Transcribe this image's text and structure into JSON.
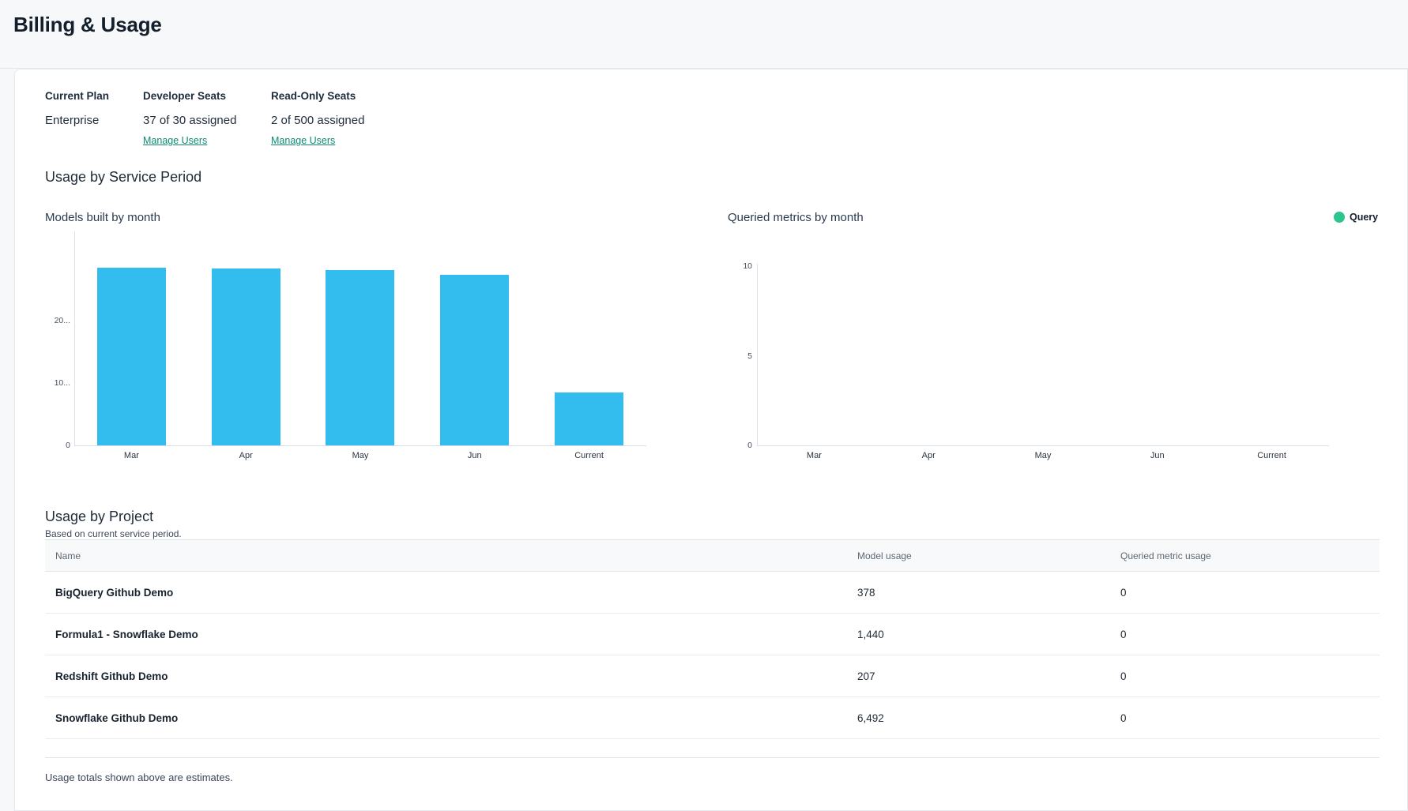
{
  "page": {
    "title": "Billing & Usage"
  },
  "colors": {
    "link_teal": "#0e8a73",
    "bar_blue": "#33bdef",
    "legend_green": "#2ec48e"
  },
  "plan": {
    "columns": [
      {
        "label": "Current Plan",
        "value": "Enterprise"
      },
      {
        "label": "Developer Seats",
        "value": "37 of 30 assigned",
        "link": "Manage Users"
      },
      {
        "label": "Read-Only Seats",
        "value": "2 of 500 assigned",
        "link": "Manage Users"
      }
    ]
  },
  "usage_section": {
    "heading": "Usage by Service Period"
  },
  "chart_data": [
    {
      "type": "bar",
      "title": "Models built by month",
      "categories": [
        "Mar",
        "Apr",
        "May",
        "Jun",
        "Current"
      ],
      "values": [
        28500,
        28400,
        28200,
        27400,
        8500
      ],
      "values_note": "estimated from bar heights; axis labels truncated",
      "xlabel": "",
      "ylabel": "",
      "ylim": [
        0,
        34000
      ],
      "yticks": [
        [
          20000,
          "20..."
        ],
        [
          10000,
          "10..."
        ],
        [
          0,
          "0"
        ]
      ],
      "grid": false,
      "bar_color": "#33bdef",
      "legend_position": "none"
    },
    {
      "type": "line",
      "title": "Queried metrics by month",
      "categories": [
        "Mar",
        "Apr",
        "May",
        "Jun",
        "Current"
      ],
      "series": [
        {
          "name": "Query",
          "values": []
        }
      ],
      "xlabel": "",
      "ylabel": "",
      "ylim": [
        0,
        10
      ],
      "yticks": [
        [
          10,
          "10"
        ],
        [
          5,
          "5"
        ],
        [
          0,
          "0"
        ]
      ],
      "grid": false,
      "legend_position": "top-right",
      "legend": {
        "label": "Query",
        "color": "#2ec48e"
      }
    }
  ],
  "project_table": {
    "heading": "Usage by Project",
    "subheading": "Based on current service period.",
    "columns": [
      "Name",
      "Model usage",
      "Queried metric usage"
    ],
    "rows": [
      {
        "name": "BigQuery Github Demo",
        "model_usage": "378",
        "queried_metric_usage": "0"
      },
      {
        "name": "Formula1 - Snowflake Demo",
        "model_usage": "1,440",
        "queried_metric_usage": "0"
      },
      {
        "name": "Redshift Github Demo",
        "model_usage": "207",
        "queried_metric_usage": "0"
      },
      {
        "name": "Snowflake Github Demo",
        "model_usage": "6,492",
        "queried_metric_usage": "0"
      }
    ],
    "footnote": "Usage totals shown above are estimates."
  }
}
